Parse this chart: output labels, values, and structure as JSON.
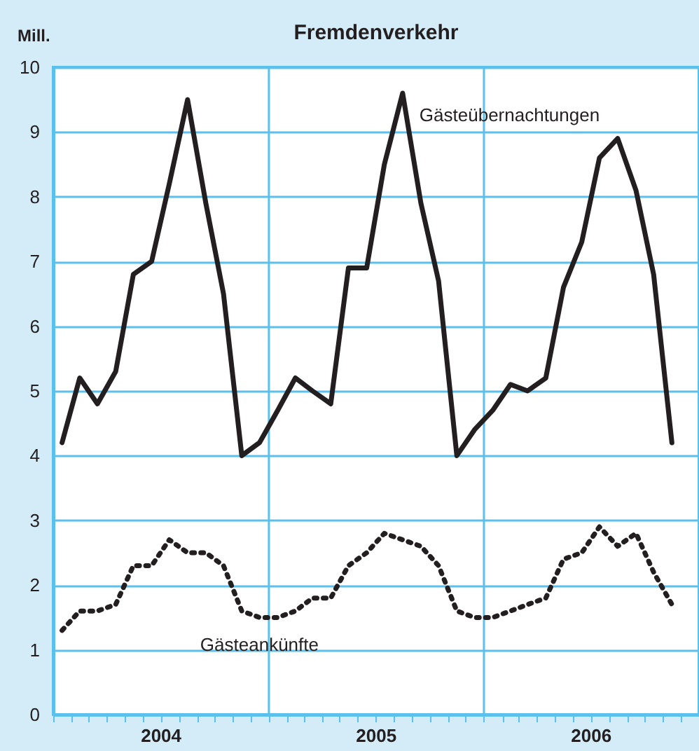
{
  "chart_data": {
    "type": "line",
    "title": "Fremdenverkehr",
    "ylabel": "Mill.",
    "x": [
      "2004-01-16",
      "2004-02-15",
      "2004-03-16",
      "2004-04-16",
      "2004-05-16",
      "2004-06-16",
      "2004-07-16",
      "2004-08-16",
      "2004-09-16",
      "2004-10-16",
      "2004-11-16",
      "2004-12-16",
      "2005-01-16",
      "2005-02-15",
      "2005-03-16",
      "2005-04-16",
      "2005-05-16",
      "2005-06-16",
      "2005-07-16",
      "2005-08-16",
      "2005-09-16",
      "2005-10-16",
      "2005-11-16",
      "2005-12-16",
      "2006-01-16",
      "2006-02-15",
      "2006-03-16",
      "2006-04-16",
      "2006-05-16",
      "2006-06-16",
      "2006-07-16",
      "2006-08-16",
      "2006-09-16",
      "2006-10-16",
      "2006-11-16"
    ],
    "series": [
      {
        "name": "Gästeübernachtungen",
        "color": "#231f20",
        "line_style": "solid",
        "values": [
          4.2,
          5.2,
          4.8,
          5.3,
          6.8,
          7.0,
          8.2,
          9.5,
          7.9,
          6.5,
          4.0,
          4.2,
          4.7,
          5.2,
          5.0,
          4.8,
          6.9,
          6.9,
          8.5,
          9.6,
          7.9,
          6.7,
          4.0,
          4.4,
          4.7,
          5.1,
          5.0,
          5.2,
          6.6,
          7.3,
          8.6,
          8.9,
          8.1,
          6.8,
          4.2
        ]
      },
      {
        "name": "Gästeankünfte",
        "color": "#231f20",
        "line_style": "dotted",
        "values": [
          1.3,
          1.6,
          1.6,
          1.7,
          2.3,
          2.3,
          2.7,
          2.5,
          2.5,
          2.3,
          1.6,
          1.5,
          1.5,
          1.6,
          1.8,
          1.8,
          2.3,
          2.5,
          2.8,
          2.7,
          2.6,
          2.3,
          1.6,
          1.5,
          1.5,
          1.6,
          1.7,
          1.8,
          2.4,
          2.5,
          2.9,
          2.6,
          2.8,
          2.2,
          1.7
        ]
      }
    ],
    "xlim": [
      "2004-01-01",
      "2007-01-01"
    ],
    "xticks": [
      {
        "value": "2004-01-01",
        "label": null
      },
      {
        "value": "2004-02-01",
        "label": null
      },
      {
        "value": "2004-03-01",
        "label": null
      },
      {
        "value": "2004-04-01",
        "label": null
      },
      {
        "value": "2004-05-01",
        "label": null
      },
      {
        "value": "2004-06-01",
        "label": null
      },
      {
        "value": "2004-07-01",
        "label": "2004"
      },
      {
        "value": "2004-08-01",
        "label": null
      },
      {
        "value": "2004-09-01",
        "label": null
      },
      {
        "value": "2004-10-01",
        "label": null
      },
      {
        "value": "2004-11-01",
        "label": null
      },
      {
        "value": "2004-12-01",
        "label": null
      },
      {
        "value": "2005-01-01",
        "label": null
      },
      {
        "value": "2005-02-01",
        "label": null
      },
      {
        "value": "2005-03-01",
        "label": null
      },
      {
        "value": "2005-04-01",
        "label": null
      },
      {
        "value": "2005-05-01",
        "label": null
      },
      {
        "value": "2005-06-01",
        "label": null
      },
      {
        "value": "2005-07-01",
        "label": "2005"
      },
      {
        "value": "2005-08-01",
        "label": null
      },
      {
        "value": "2005-09-01",
        "label": null
      },
      {
        "value": "2005-10-01",
        "label": null
      },
      {
        "value": "2005-11-01",
        "label": null
      },
      {
        "value": "2005-12-01",
        "label": null
      },
      {
        "value": "2006-01-01",
        "label": null
      },
      {
        "value": "2006-02-01",
        "label": null
      },
      {
        "value": "2006-03-01",
        "label": null
      },
      {
        "value": "2006-04-01",
        "label": null
      },
      {
        "value": "2006-05-01",
        "label": null
      },
      {
        "value": "2006-06-01",
        "label": null
      },
      {
        "value": "2006-07-01",
        "label": "2006"
      },
      {
        "value": "2006-08-01",
        "label": null
      },
      {
        "value": "2006-09-01",
        "label": null
      },
      {
        "value": "2006-10-01",
        "label": null
      },
      {
        "value": "2006-11-01",
        "label": null
      },
      {
        "value": "2006-12-01",
        "label": null
      }
    ],
    "ylim": [
      0,
      10
    ],
    "yticks": [
      0,
      1,
      2,
      3,
      4,
      5,
      6,
      7,
      8,
      9,
      10
    ],
    "grid": "y",
    "legend": false,
    "marker": "none",
    "ref_lines": [
      {
        "axis": "x",
        "value": "2005-01-01",
        "color": "#5bc0eb"
      },
      {
        "axis": "x",
        "value": "2006-01-01",
        "color": "#5bc0eb"
      }
    ]
  }
}
